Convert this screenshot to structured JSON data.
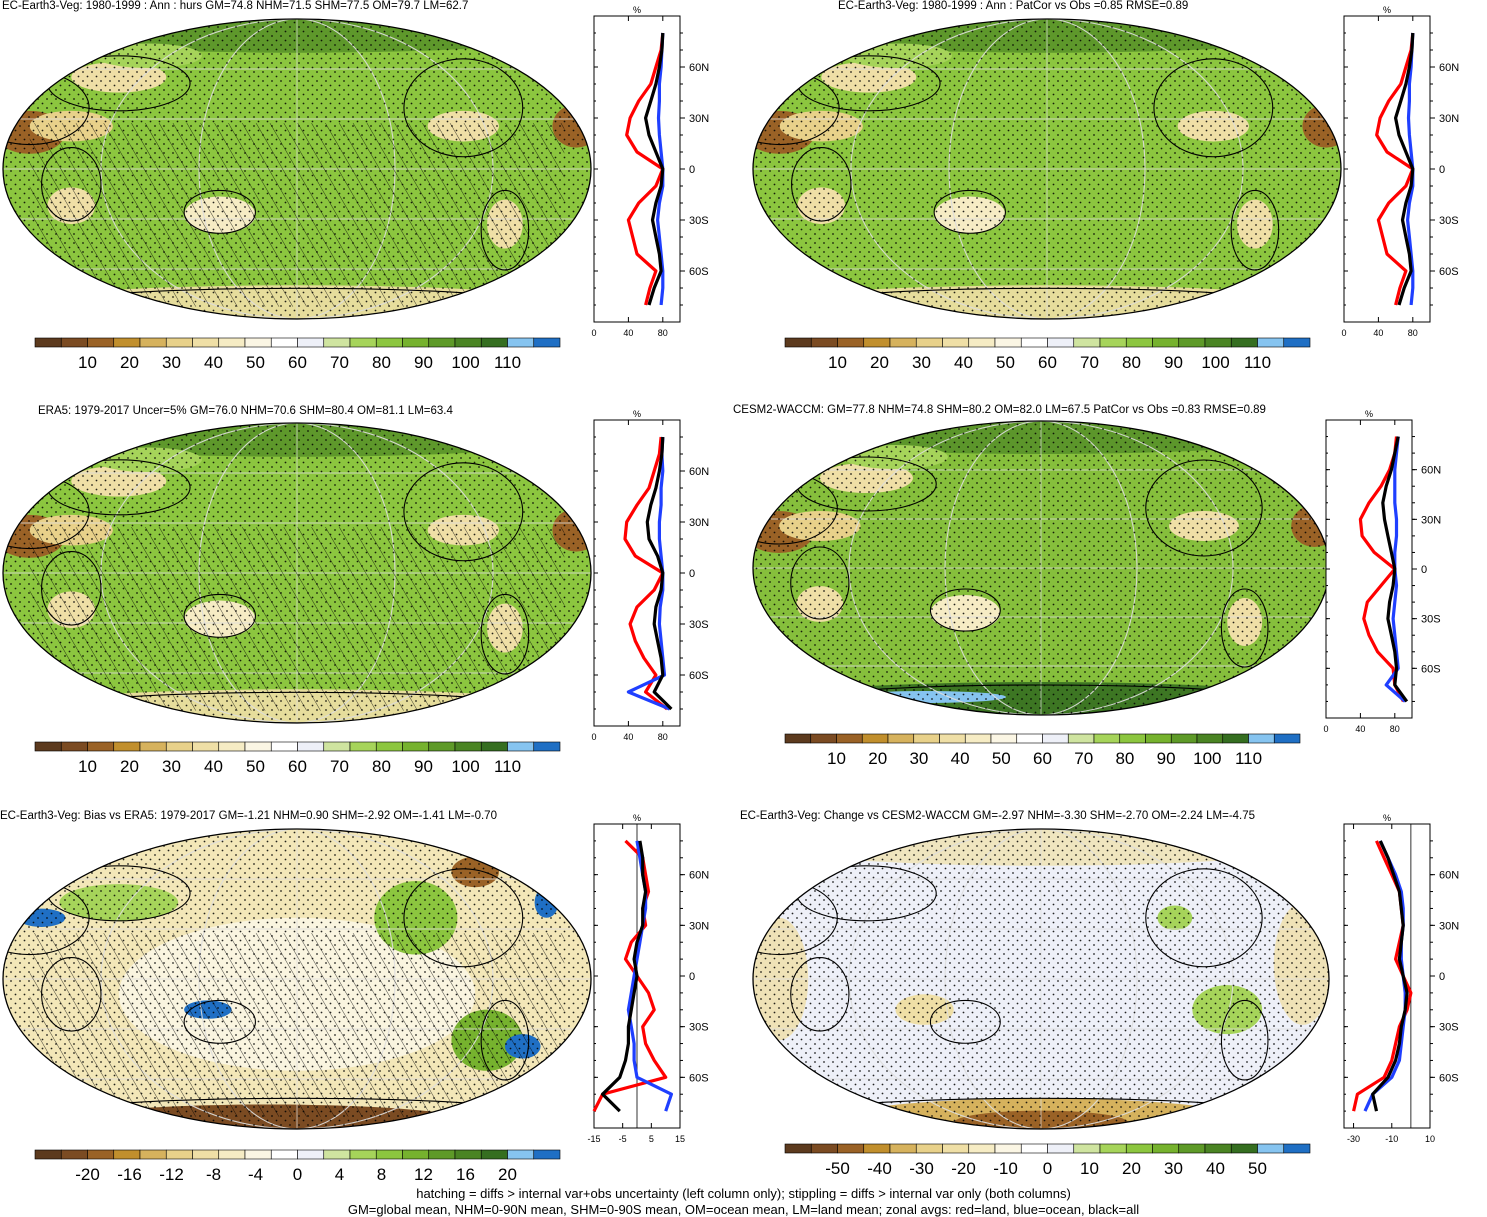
{
  "chart_data": [
    {
      "type": "map",
      "title": "EC-Earth3-Veg: 1980-1999 : Ann : hurs GM=74.8 NHM=71.5 SHM=77.5 OM=79.7 LM=62.7",
      "colorbar_ticks": [
        "10",
        "20",
        "30",
        "40",
        "50",
        "60",
        "70",
        "80",
        "90",
        "100",
        "110"
      ],
      "profile": {
        "unit": "%",
        "x_ticks": [
          "0",
          "40",
          "80"
        ],
        "y_ticks": [
          "60N",
          "30N",
          "0",
          "30S",
          "60S"
        ],
        "xlim": [
          0,
          100
        ],
        "lat": [
          80,
          70,
          60,
          50,
          40,
          30,
          20,
          10,
          0,
          -10,
          -20,
          -30,
          -40,
          -50,
          -60,
          -70,
          -80
        ],
        "land": [
          80,
          78,
          72,
          66,
          52,
          42,
          38,
          50,
          80,
          72,
          52,
          40,
          45,
          50,
          72,
          65,
          60
        ],
        "ocean": [
          80,
          79,
          78,
          76,
          76,
          75,
          76,
          78,
          80,
          80,
          76,
          74,
          76,
          78,
          80,
          80,
          78
        ],
        "all": [
          80,
          79,
          76,
          72,
          66,
          60,
          64,
          72,
          80,
          78,
          72,
          68,
          72,
          76,
          78,
          70,
          64
        ]
      }
    },
    {
      "type": "map",
      "title": "EC-Earth3-Veg: 1980-1999 : Ann : PatCor vs Obs =0.85 RMSE=0.89",
      "colorbar_ticks": [
        "10",
        "20",
        "30",
        "40",
        "50",
        "60",
        "70",
        "80",
        "90",
        "100",
        "110"
      ],
      "profile": {
        "unit": "%",
        "x_ticks": [
          "0",
          "40",
          "80"
        ],
        "y_ticks": [
          "60N",
          "30N",
          "0",
          "30S",
          "60S"
        ],
        "xlim": [
          0,
          100
        ],
        "lat": [
          80,
          70,
          60,
          50,
          40,
          30,
          20,
          10,
          0,
          -10,
          -20,
          -30,
          -40,
          -50,
          -60,
          -70,
          -80
        ],
        "land": [
          80,
          78,
          72,
          66,
          52,
          42,
          38,
          50,
          80,
          72,
          52,
          40,
          45,
          50,
          72,
          65,
          60
        ],
        "ocean": [
          80,
          79,
          78,
          76,
          76,
          75,
          76,
          78,
          80,
          80,
          76,
          74,
          76,
          78,
          80,
          80,
          78
        ],
        "all": [
          80,
          79,
          76,
          72,
          66,
          60,
          64,
          72,
          80,
          78,
          72,
          68,
          72,
          76,
          78,
          70,
          64
        ]
      }
    },
    {
      "type": "map",
      "title": "ERA5: 1979-2017 Uncer=5% GM=76.0 NHM=70.6 SHM=80.4 OM=81.1 LM=63.4",
      "colorbar_ticks": [
        "10",
        "20",
        "30",
        "40",
        "50",
        "60",
        "70",
        "80",
        "90",
        "100",
        "110"
      ],
      "profile": {
        "unit": "%",
        "x_ticks": [
          "0",
          "40",
          "80"
        ],
        "y_ticks": [
          "60N",
          "30N",
          "0",
          "30S",
          "60S"
        ],
        "xlim": [
          0,
          100
        ],
        "lat": [
          80,
          70,
          60,
          50,
          40,
          30,
          20,
          10,
          0,
          -10,
          -20,
          -30,
          -40,
          -50,
          -60,
          -70,
          -80
        ],
        "land": [
          78,
          76,
          70,
          64,
          50,
          38,
          36,
          48,
          80,
          70,
          50,
          42,
          48,
          58,
          72,
          60,
          85
        ],
        "ocean": [
          80,
          79,
          80,
          78,
          78,
          76,
          76,
          78,
          80,
          80,
          77,
          76,
          78,
          80,
          82,
          40,
          88
        ],
        "all": [
          80,
          79,
          76,
          72,
          66,
          62,
          64,
          74,
          80,
          78,
          72,
          70,
          74,
          78,
          80,
          70,
          90
        ]
      }
    },
    {
      "type": "map",
      "title": "CESM2-WACCM: GM=77.8 NHM=74.8 SHM=80.2 OM=82.0 LM=67.5 PatCor vs Obs =0.83 RMSE=0.89",
      "colorbar_ticks": [
        "10",
        "20",
        "30",
        "40",
        "50",
        "60",
        "70",
        "80",
        "90",
        "100",
        "110"
      ],
      "profile": {
        "unit": "%",
        "x_ticks": [
          "0",
          "40",
          "80"
        ],
        "y_ticks": [
          "60N",
          "30N",
          "0",
          "30S",
          "60S"
        ],
        "xlim": [
          0,
          100
        ],
        "lat": [
          80,
          70,
          60,
          50,
          40,
          30,
          20,
          10,
          0,
          -10,
          -20,
          -30,
          -40,
          -50,
          -60,
          -70,
          -80
        ],
        "land": [
          82,
          80,
          74,
          64,
          50,
          40,
          42,
          56,
          80,
          64,
          48,
          44,
          50,
          60,
          78,
          80,
          90
        ],
        "ocean": [
          84,
          82,
          80,
          80,
          80,
          82,
          82,
          80,
          80,
          82,
          80,
          78,
          80,
          82,
          84,
          70,
          92
        ],
        "all": [
          84,
          80,
          76,
          70,
          66,
          68,
          72,
          76,
          80,
          78,
          74,
          72,
          76,
          80,
          82,
          80,
          94
        ]
      }
    },
    {
      "type": "map",
      "title": "EC-Earth3-Veg: Bias vs ERA5: 1979-2017 GM=-1.21 NHM=0.90 SHM=-2.92 OM=-1.41 LM=-0.70",
      "colorbar_ticks": [
        "-20",
        "-16",
        "-12",
        "-8",
        "-4",
        "0",
        "4",
        "8",
        "12",
        "16",
        "20"
      ],
      "profile": {
        "unit": "%",
        "x_ticks": [
          "-15",
          "-5",
          "5",
          "15"
        ],
        "y_ticks": [
          "60N",
          "30N",
          "0",
          "30S",
          "60S"
        ],
        "xlim": [
          -15,
          15
        ],
        "lat": [
          80,
          70,
          60,
          50,
          40,
          30,
          20,
          10,
          0,
          -10,
          -20,
          -30,
          -40,
          -50,
          -60,
          -70,
          -80
        ],
        "land": [
          -4,
          2,
          3,
          4,
          2,
          3,
          -2,
          -4,
          0,
          4,
          6,
          2,
          3,
          6,
          10,
          -12,
          -15
        ],
        "ocean": [
          0,
          1,
          2,
          3,
          3,
          2,
          1,
          0,
          -1,
          -2,
          -3,
          -2,
          -1,
          -1,
          0,
          12,
          10
        ],
        "all": [
          1,
          2,
          2,
          3,
          2,
          2,
          0,
          -1,
          0,
          -1,
          -2,
          -3,
          -3,
          -4,
          -6,
          -12,
          -6
        ]
      }
    },
    {
      "type": "map",
      "title": "EC-Earth3-Veg: Change vs CESM2-WACCM GM=-2.97 NHM=-3.30 SHM=-2.70 OM=-2.24 LM=-4.75",
      "colorbar_ticks": [
        "-50",
        "-40",
        "-30",
        "-20",
        "-10",
        "0",
        "10",
        "20",
        "30",
        "40",
        "50"
      ],
      "profile": {
        "unit": "%",
        "x_ticks": [
          "-30",
          "-10",
          "10"
        ],
        "y_ticks": [
          "60N",
          "30N",
          "0",
          "30S",
          "60S"
        ],
        "xlim": [
          -35,
          10
        ],
        "lat": [
          80,
          70,
          60,
          50,
          40,
          30,
          20,
          10,
          0,
          -10,
          -20,
          -30,
          -40,
          -50,
          -60,
          -70,
          -80
        ],
        "land": [
          -18,
          -14,
          -10,
          -6,
          -5,
          -4,
          -6,
          -8,
          -4,
          0,
          -2,
          -6,
          -8,
          -10,
          -14,
          -28,
          -30
        ],
        "ocean": [
          -16,
          -12,
          -8,
          -5,
          -4,
          -4,
          -5,
          -5,
          -4,
          -3,
          -3,
          -4,
          -5,
          -6,
          -10,
          -20,
          -24
        ],
        "all": [
          -16,
          -12,
          -9,
          -6,
          -5,
          -4,
          -5,
          -6,
          -4,
          -2,
          -3,
          -5,
          -6,
          -8,
          -12,
          -20,
          -18
        ]
      }
    }
  ],
  "footer": {
    "line1": "hatching = diffs > internal var+obs uncertainty (left column only); stippling = diffs > internal var only (both columns)",
    "line2": "GM=global mean, NHM=0-90N mean, SHM=0-90S mean, OM=ocean mean, LM=land mean; zonal avgs: red=land, blue=ocean, black=all"
  },
  "colors": {
    "land": "#ff0000",
    "ocean": "#1f3fff",
    "all": "#000000",
    "palette": [
      "#5c3a1e",
      "#7b4b22",
      "#9a6226",
      "#c18f2d",
      "#d6b25d",
      "#e8d18a",
      "#efdfa6",
      "#f6ecc4",
      "#fbf6e4",
      "#ffffff",
      "#eef0f8",
      "#cfe4a0",
      "#a6d45a",
      "#8cc63f",
      "#76b22e",
      "#5e9a28",
      "#4a8423",
      "#356e20",
      "#86c4f0",
      "#1f6fc4"
    ]
  }
}
